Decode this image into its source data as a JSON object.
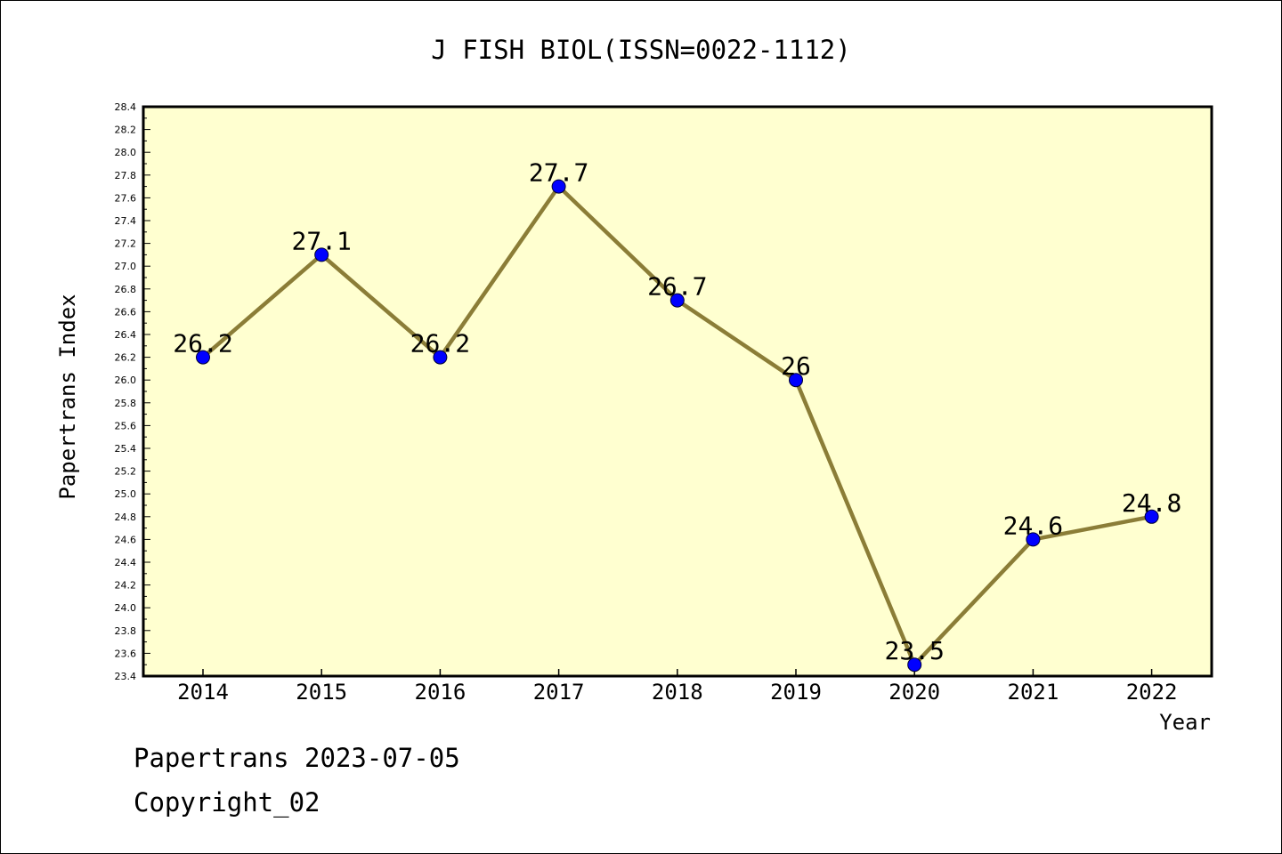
{
  "chart_data": {
    "type": "line",
    "title": "J FISH BIOL(ISSN=0022-1112)",
    "xlabel": "Year",
    "ylabel": "Papertrans Index",
    "categories": [
      "2014",
      "2015",
      "2016",
      "2017",
      "2018",
      "2019",
      "2020",
      "2021",
      "2022"
    ],
    "values": [
      26.2,
      27.1,
      26.2,
      27.7,
      26.7,
      26.0,
      23.5,
      24.6,
      24.8
    ],
    "data_labels": [
      "26.2",
      "27.1",
      "26.2",
      "27.7",
      "26.7",
      "26",
      "23.5",
      "24.6",
      "24.8"
    ],
    "ylim": [
      23.4,
      28.4
    ],
    "y_ticks": [
      "23.4",
      "23.6",
      "23.8",
      "24.0",
      "24.2",
      "24.4",
      "24.6",
      "24.8",
      "25.0",
      "25.2",
      "25.4",
      "25.6",
      "25.8",
      "26.0",
      "26.2",
      "26.4",
      "26.6",
      "26.8",
      "27.0",
      "27.2",
      "27.4",
      "27.6",
      "27.8",
      "28.0",
      "28.2",
      "28.4"
    ],
    "grid": false,
    "colors": {
      "plot_background": "#ffffd0",
      "line": "#8b7d37",
      "marker": "#0000ff"
    }
  },
  "footer": {
    "line1": "Papertrans 2023-07-05",
    "line2": "Copyright_02"
  }
}
